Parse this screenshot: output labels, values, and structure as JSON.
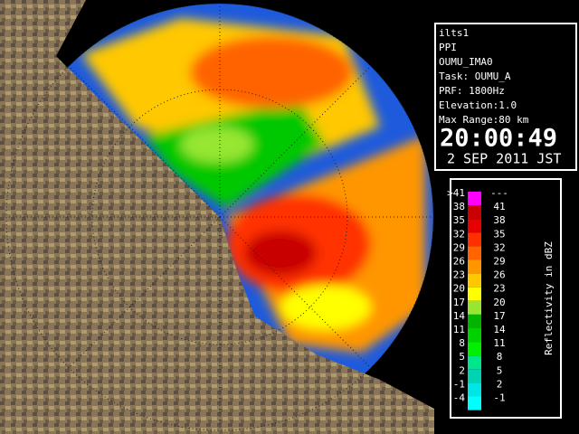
{
  "info": {
    "lines": [
      "ilts1",
      "PPI",
      "OUMU_IMA0",
      "Task: OUMU_A",
      "PRF: 1800Hz",
      "Elevation:1.0",
      "Max Range:80 km"
    ],
    "time": "20:00:49",
    "date": "2 SEP 2011 JST"
  },
  "legend": {
    "axis_label": "Reflectivity in dBZ",
    "rows": [
      {
        "low": ">41",
        "high": "---",
        "color": "#ff00ff"
      },
      {
        "low": "38",
        "high": "41",
        "color": "#c80000"
      },
      {
        "low": "35",
        "high": "38",
        "color": "#e60000"
      },
      {
        "low": "32",
        "high": "35",
        "color": "#ff3000"
      },
      {
        "low": "29",
        "high": "32",
        "color": "#ff6400"
      },
      {
        "low": "26",
        "high": "29",
        "color": "#ff9600"
      },
      {
        "low": "23",
        "high": "26",
        "color": "#ffc800"
      },
      {
        "low": "20",
        "high": "23",
        "color": "#ffff00"
      },
      {
        "low": "17",
        "high": "20",
        "color": "#96e632"
      },
      {
        "low": "14",
        "high": "17",
        "color": "#00b400"
      },
      {
        "low": "11",
        "high": "14",
        "color": "#00d200"
      },
      {
        "low": "8",
        "high": "11",
        "color": "#00f000"
      },
      {
        "low": "5",
        "high": "8",
        "color": "#00e68c"
      },
      {
        "low": "2",
        "high": "5",
        "color": "#00d2b4"
      },
      {
        "low": "-1",
        "high": "2",
        "color": "#00e6e6"
      },
      {
        "low": "-4",
        "high": "-1",
        "color": "#00ffff"
      }
    ]
  }
}
